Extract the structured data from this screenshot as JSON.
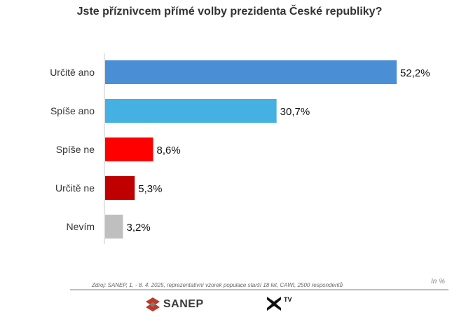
{
  "chart_data": {
    "type": "bar",
    "orientation": "horizontal",
    "title": "Jste příznivcem přímé volby prezidenta České republiky?",
    "categories": [
      "Určitě ano",
      "Spíše ano",
      "Spíše ne",
      "Určitě ne",
      "Nevím"
    ],
    "values": [
      52.2,
      30.7,
      8.6,
      5.3,
      3.2
    ],
    "value_labels": [
      "52,2%",
      "30,7%",
      "8,6%",
      "5,3%",
      "3,2%"
    ],
    "colors": [
      "#4a8fd6",
      "#45b0e2",
      "#ff0000",
      "#c00000",
      "#bfbfbf"
    ],
    "xlim": [
      0,
      52.2
    ],
    "grid": false
  },
  "footer": {
    "source": "Zdroj: SANEP, 1. - 8. 4. 2025, reprezentativní vzorek populace starší 18 let, CAWI, 2500 respondentů",
    "unit": "In %",
    "logos": [
      {
        "name": "SANEP",
        "icon": "sanep-logo-icon",
        "color": "#c0392b"
      },
      {
        "name": "TV",
        "icon": "xtv-logo-icon"
      }
    ]
  }
}
